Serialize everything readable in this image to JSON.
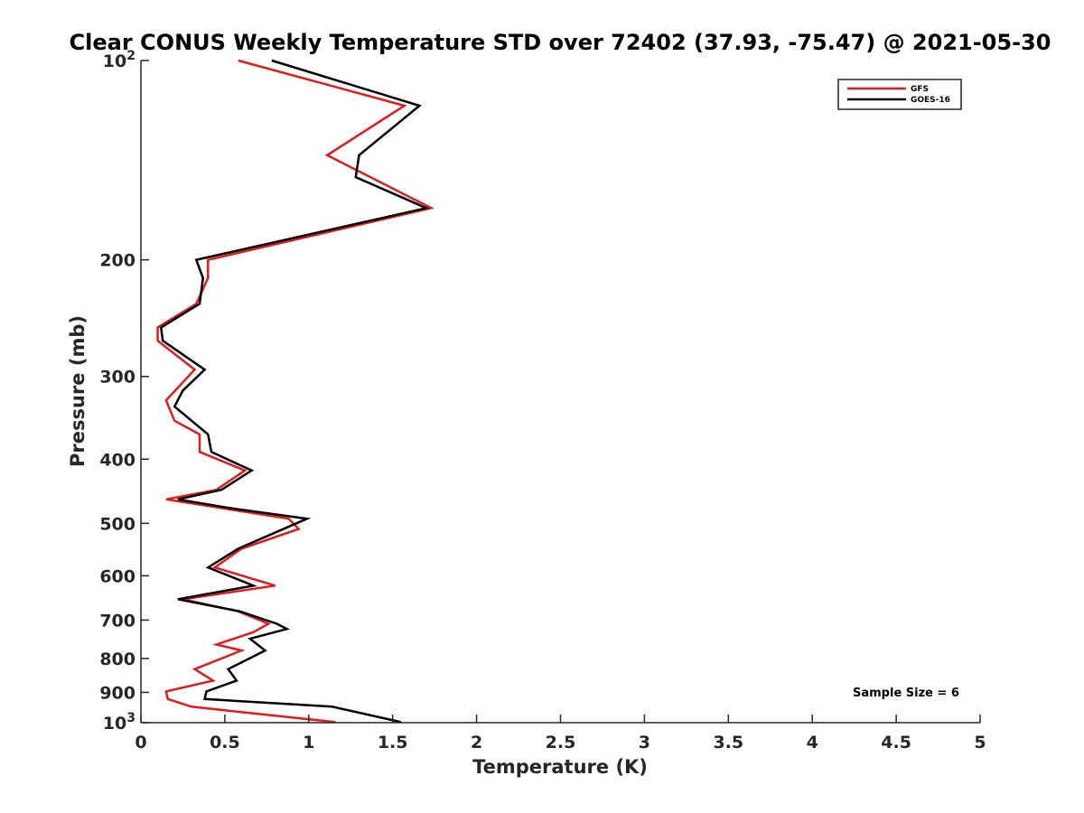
{
  "chart_data": {
    "type": "line",
    "title": "Clear CONUS Weekly Temperature STD over 72402 (37.93, -75.47) @ 2021-05-30",
    "xlabel": "Temperature (K)",
    "ylabel": "Pressure (mb)",
    "xlim": [
      0,
      5
    ],
    "ylim": [
      100,
      1000
    ],
    "y_scale": "log",
    "y_reversed": true,
    "grid": false,
    "legend_position": "top-right",
    "annotation": "Sample Size = 6",
    "x_ticks": [
      "0",
      "0.5",
      "1",
      "1.5",
      "2",
      "2.5",
      "3",
      "3.5",
      "4",
      "4.5",
      "5"
    ],
    "x_tick_values": [
      0,
      0.5,
      1,
      1.5,
      2,
      2.5,
      3,
      3.5,
      4,
      4.5,
      5
    ],
    "y_tick_values": [
      100,
      200,
      300,
      400,
      500,
      600,
      700,
      800,
      900,
      1000
    ],
    "y_ticks": [
      {
        "base": "10",
        "exp": "2"
      },
      {
        "base": "200",
        "exp": ""
      },
      {
        "base": "300",
        "exp": ""
      },
      {
        "base": "400",
        "exp": ""
      },
      {
        "base": "500",
        "exp": ""
      },
      {
        "base": "600",
        "exp": ""
      },
      {
        "base": "700",
        "exp": ""
      },
      {
        "base": "800",
        "exp": ""
      },
      {
        "base": "900",
        "exp": ""
      },
      {
        "base": "10",
        "exp": "3"
      }
    ],
    "series": [
      {
        "name": "GFS",
        "color": "#e31a1c",
        "points": [
          [
            0.58,
            100
          ],
          [
            1.57,
            117
          ],
          [
            1.11,
            139
          ],
          [
            1.73,
            167
          ],
          [
            0.4,
            200
          ],
          [
            0.4,
            213
          ],
          [
            0.33,
            233
          ],
          [
            0.1,
            253
          ],
          [
            0.1,
            265
          ],
          [
            0.32,
            293
          ],
          [
            0.15,
            326
          ],
          [
            0.2,
            350
          ],
          [
            0.35,
            367
          ],
          [
            0.35,
            390
          ],
          [
            0.62,
            416
          ],
          [
            0.45,
            445
          ],
          [
            0.15,
            460
          ],
          [
            0.5,
            475
          ],
          [
            0.88,
            492
          ],
          [
            0.94,
            510
          ],
          [
            0.6,
            546
          ],
          [
            0.44,
            583
          ],
          [
            0.8,
            621
          ],
          [
            0.25,
            651
          ],
          [
            0.58,
            679
          ],
          [
            0.76,
            709
          ],
          [
            0.67,
            730
          ],
          [
            0.45,
            762
          ],
          [
            0.6,
            778
          ],
          [
            0.32,
            830
          ],
          [
            0.43,
            864
          ],
          [
            0.15,
            897
          ],
          [
            0.16,
            921
          ],
          [
            0.3,
            946
          ],
          [
            1.16,
            998
          ]
        ]
      },
      {
        "name": "GOES-16",
        "color": "#000000",
        "points": [
          [
            0.78,
            100
          ],
          [
            1.66,
            117
          ],
          [
            1.3,
            139
          ],
          [
            1.28,
            150
          ],
          [
            1.7,
            167
          ],
          [
            0.33,
            200
          ],
          [
            0.37,
            213
          ],
          [
            0.35,
            233
          ],
          [
            0.12,
            253
          ],
          [
            0.13,
            265
          ],
          [
            0.38,
            293
          ],
          [
            0.25,
            315
          ],
          [
            0.2,
            333
          ],
          [
            0.4,
            367
          ],
          [
            0.42,
            390
          ],
          [
            0.66,
            416
          ],
          [
            0.48,
            445
          ],
          [
            0.22,
            460
          ],
          [
            0.55,
            475
          ],
          [
            0.99,
            492
          ],
          [
            0.58,
            546
          ],
          [
            0.4,
            583
          ],
          [
            0.67,
            621
          ],
          [
            0.22,
            651
          ],
          [
            0.59,
            679
          ],
          [
            0.81,
            709
          ],
          [
            0.87,
            722
          ],
          [
            0.65,
            747
          ],
          [
            0.74,
            778
          ],
          [
            0.52,
            830
          ],
          [
            0.57,
            864
          ],
          [
            0.39,
            897
          ],
          [
            0.38,
            921
          ],
          [
            1.14,
            946
          ],
          [
            1.55,
            998
          ]
        ]
      }
    ]
  }
}
